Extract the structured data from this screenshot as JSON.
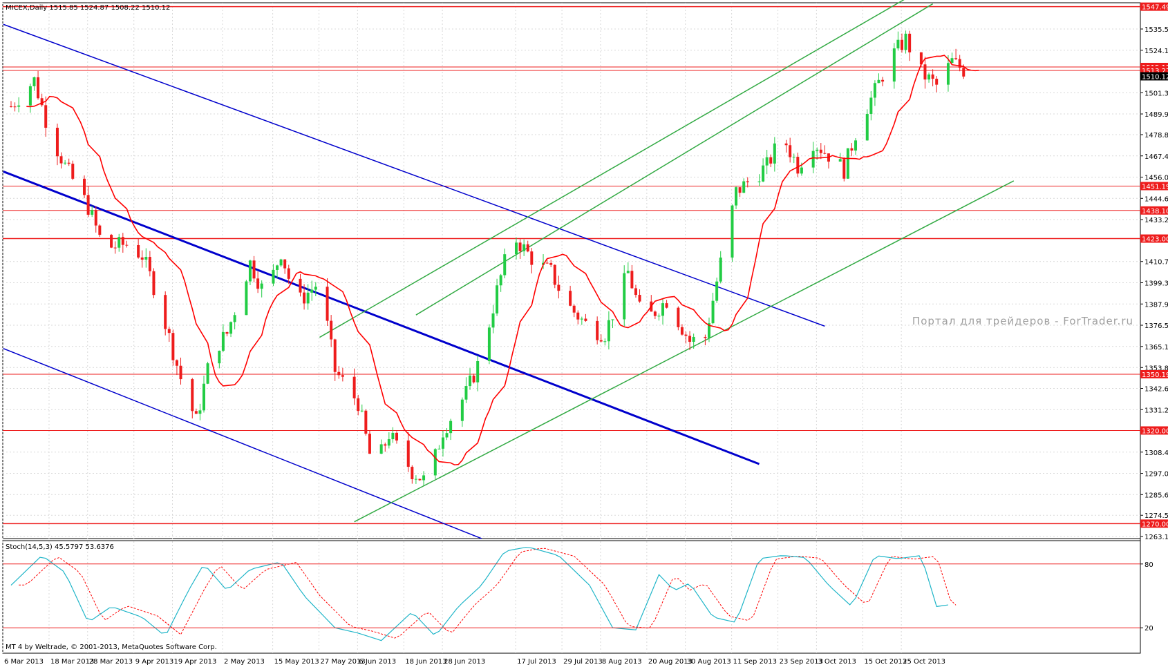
{
  "main_chart": {
    "header": "MICEX,Daily  1515.85 1524.87 1508.22 1510.12",
    "price_ticks": [
      "1535.50",
      "1524.10",
      "1501.30",
      "1489.90",
      "1478.80",
      "1467.40",
      "1456.00",
      "1444.60",
      "1433.20",
      "1410.70",
      "1399.30",
      "1387.90",
      "1376.50",
      "1365.10",
      "1353.80",
      "1342.60",
      "1331.20",
      "1308.40",
      "1297.00",
      "1285.60",
      "1274.50",
      "1263.10"
    ],
    "levels": [
      "1547.49",
      "1515.12",
      "1513.27",
      "1510.12",
      "1451.19",
      "1438.10",
      "1423.00",
      "1350.19",
      "1320.00",
      "1270.00"
    ],
    "watermark": "Портал для трейдеров - ForTrader.ru"
  },
  "indicator": {
    "header": "Stoch(14,5,3) 45.5797 53.6376",
    "levels": [
      "80",
      "20"
    ]
  },
  "footer": {
    "copyright": "MT 4 by Weltrade, © 2001-2013, MetaQuotes Software Corp."
  },
  "time_axis": {
    "labels": [
      "6 Mar 2013",
      "18 Mar 2013",
      "28 Mar 2013",
      "9 Apr 2013",
      "19 Apr 2013",
      "2 May 2013",
      "15 May 2013",
      "27 May 2013",
      "6 Jun 2013",
      "18 Jun 2013",
      "28 Jun 2013",
      "17 Jul 2013",
      "29 Jul 2013",
      "8 Aug 2013",
      "20 Aug 2013",
      "30 Aug 2013",
      "11 Sep 2013",
      "23 Sep 2013",
      "3 Oct 2013",
      "15 Oct 2013",
      "25 Oct 2013"
    ]
  },
  "colors": {
    "background": "#ffffff",
    "frame": "#000000",
    "grid": "#d8d8d8",
    "bull": "#22cc44",
    "bear": "#ee1c1c",
    "level_line": "#ee1c1c",
    "ma": "#ff0000",
    "channel_down": "#0000cc",
    "channel_up": "#33aa44",
    "stoch_main": "#1fb5c8",
    "stoch_signal": "#ff0000",
    "watermark": "#a0a0a0"
  }
}
